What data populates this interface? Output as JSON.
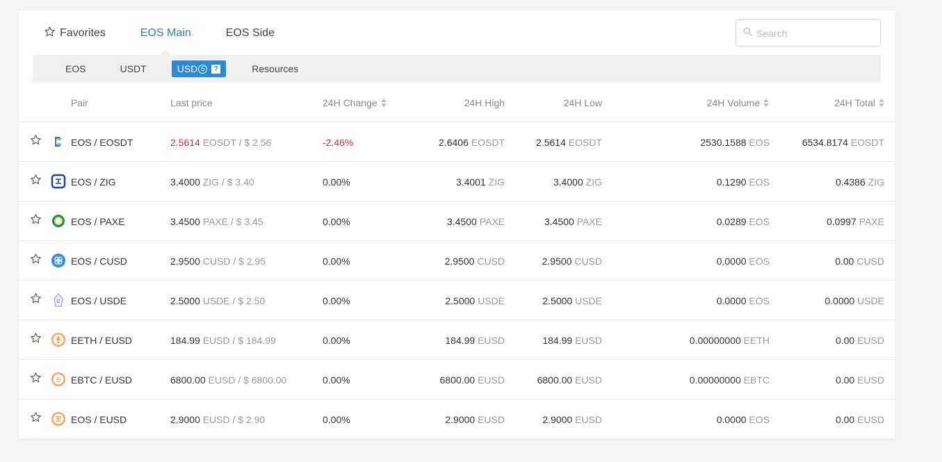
{
  "tabs": [
    {
      "label": "Favorites",
      "active": false
    },
    {
      "label": "EOS Main",
      "active": true
    },
    {
      "label": "EOS Side",
      "active": false
    }
  ],
  "search": {
    "placeholder": "Search"
  },
  "subtabs": [
    {
      "label": "EOS",
      "active": false
    },
    {
      "label": "USDT",
      "active": false
    },
    {
      "label": "USD",
      "active": true,
      "badge": "?"
    },
    {
      "label": "Resources",
      "active": false
    }
  ],
  "columns": {
    "pair": "Pair",
    "last_price": "Last price",
    "change": "24H Change",
    "high": "24H High",
    "low": "24H Low",
    "volume": "24H Volume",
    "total": "24H Total"
  },
  "colors": {
    "accent": "#2b8ad8",
    "negative": "#e0333e"
  },
  "rows": [
    {
      "icon": "eosdt-coin-icon",
      "pair": "EOS / EOSDT",
      "price": "2.5614",
      "price_unit": "EOSDT / $ 2.56",
      "price_negative": true,
      "change": "-2.46%",
      "change_negative": true,
      "high": "2.6406",
      "high_unit": "EOSDT",
      "low": "2.5614",
      "low_unit": "EOSDT",
      "volume": "2530.1588",
      "volume_unit": "EOS",
      "total": "6534.8174",
      "total_unit": "EOSDT"
    },
    {
      "icon": "zig-coin-icon",
      "pair": "EOS / ZIG",
      "price": "3.4000",
      "price_unit": "ZIG / $ 3.40",
      "change": "0.00%",
      "high": "3.4001",
      "high_unit": "ZIG",
      "low": "3.4000",
      "low_unit": "ZIG",
      "volume": "0.1290",
      "volume_unit": "EOS",
      "total": "0.4386",
      "total_unit": "ZIG"
    },
    {
      "icon": "paxe-coin-icon",
      "pair": "EOS / PAXE",
      "price": "3.4500",
      "price_unit": "PAXE / $ 3.45",
      "change": "0.00%",
      "high": "3.4500",
      "high_unit": "PAXE",
      "low": "3.4500",
      "low_unit": "PAXE",
      "volume": "0.0289",
      "volume_unit": "EOS",
      "total": "0.0997",
      "total_unit": "PAXE"
    },
    {
      "icon": "cusd-coin-icon",
      "pair": "EOS / CUSD",
      "price": "2.9500",
      "price_unit": "CUSD / $ 2.95",
      "change": "0.00%",
      "high": "2.9500",
      "high_unit": "CUSD",
      "low": "2.9500",
      "low_unit": "CUSD",
      "volume": "0.0000",
      "volume_unit": "EOS",
      "total": "0.00",
      "total_unit": "CUSD"
    },
    {
      "icon": "usde-coin-icon",
      "pair": "EOS / USDE",
      "price": "2.5000",
      "price_unit": "USDE / $ 2.50",
      "change": "0.00%",
      "high": "2.5000",
      "high_unit": "USDE",
      "low": "2.5000",
      "low_unit": "USDE",
      "volume": "0.0000",
      "volume_unit": "EOS",
      "total": "0.0000",
      "total_unit": "USDE"
    },
    {
      "icon": "eeth-coin-icon",
      "pair": "EETH / EUSD",
      "price": "184.99",
      "price_unit": "EUSD / $ 184.99",
      "change": "0.00%",
      "high": "184.99",
      "high_unit": "EUSD",
      "low": "184.99",
      "low_unit": "EUSD",
      "volume": "0.00000000",
      "volume_unit": "EETH",
      "total": "0.00",
      "total_unit": "EUSD"
    },
    {
      "icon": "ebtc-coin-icon",
      "pair": "EBTC / EUSD",
      "price": "6800.00",
      "price_unit": "EUSD / $ 6800.00",
      "change": "0.00%",
      "high": "6800.00",
      "high_unit": "EUSD",
      "low": "6800.00",
      "low_unit": "EUSD",
      "volume": "0.00000000",
      "volume_unit": "EBTC",
      "total": "0.00",
      "total_unit": "EUSD"
    },
    {
      "icon": "eusd-coin-icon",
      "pair": "EOS / EUSD",
      "price": "2.9000",
      "price_unit": "EUSD / $ 2.90",
      "change": "0.00%",
      "high": "2.9000",
      "high_unit": "EUSD",
      "low": "2.9000",
      "low_unit": "EUSD",
      "volume": "0.0000",
      "volume_unit": "EOS",
      "total": "0.00",
      "total_unit": "EUSD"
    }
  ]
}
